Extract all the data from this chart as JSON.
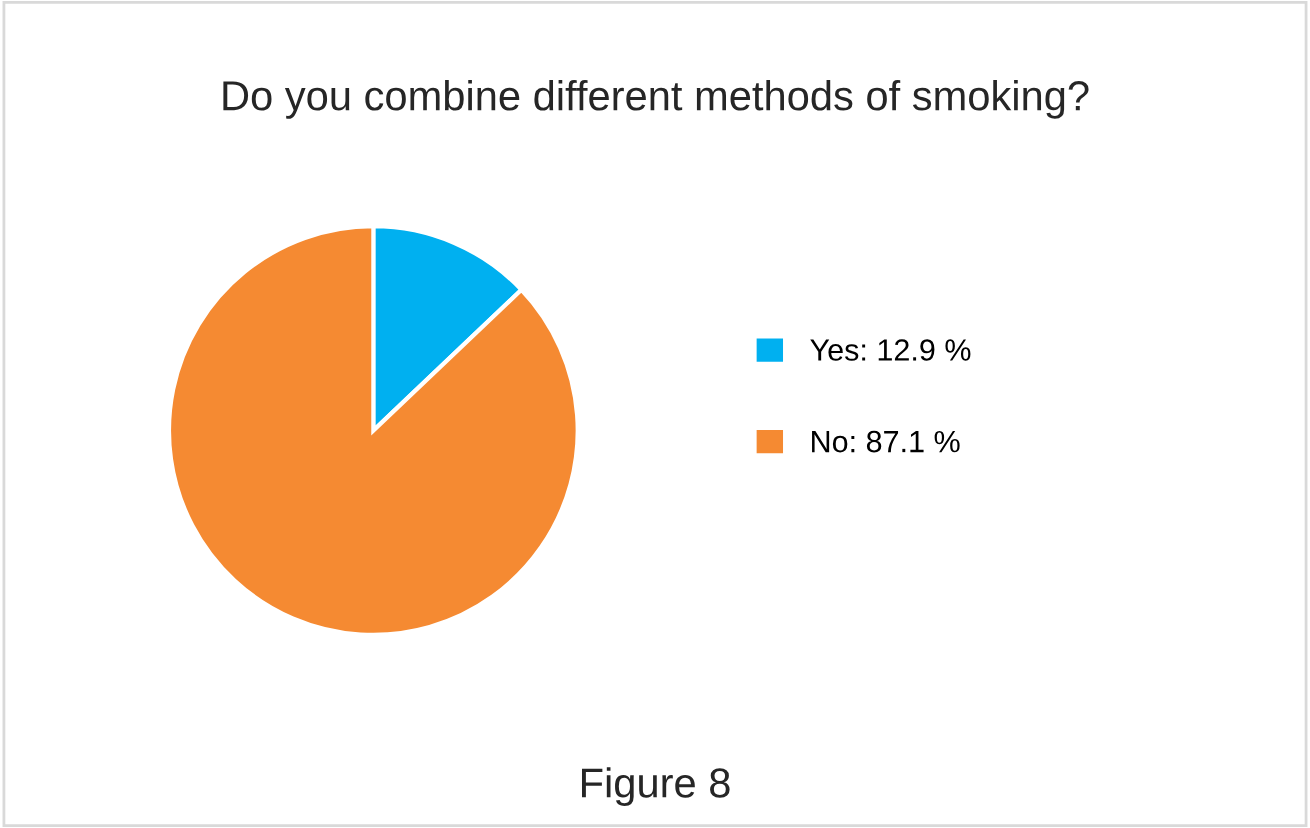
{
  "chart_data": {
    "type": "pie",
    "title": "Do you combine different methods of smoking?",
    "categories": [
      "Yes: 12.9 %",
      "No: 87.1 %"
    ],
    "values": [
      12.9,
      87.1
    ],
    "colors": [
      "#00b0f0",
      "#f58a32"
    ],
    "legend": "right",
    "annotations": [
      "Figure 8"
    ]
  }
}
